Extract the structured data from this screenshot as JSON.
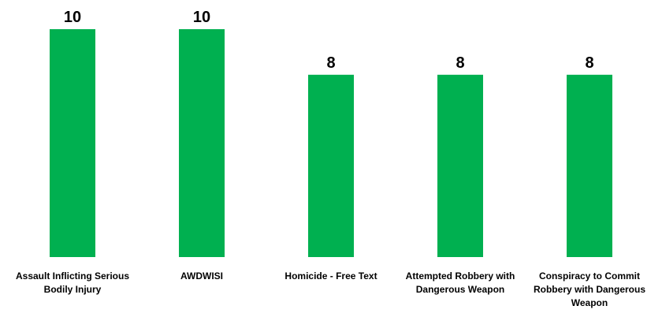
{
  "chart_data": {
    "type": "bar",
    "categories": [
      [
        "Assault Inflicting Serious",
        "Bodily Injury"
      ],
      [
        "AWDWISI"
      ],
      [
        "Homicide - Free Text"
      ],
      [
        "Attempted Robbery with",
        "Dangerous Weapon"
      ],
      [
        "Conspiracy to Commit",
        "Robbery with Dangerous",
        "Weapon"
      ]
    ],
    "values": [
      10,
      10,
      8,
      8,
      8
    ],
    "title": "",
    "xlabel": "",
    "ylabel": "",
    "ylim": [
      0,
      10
    ],
    "grid": false,
    "legend": "none",
    "data_labels": true,
    "bar_color": "#00B050"
  }
}
